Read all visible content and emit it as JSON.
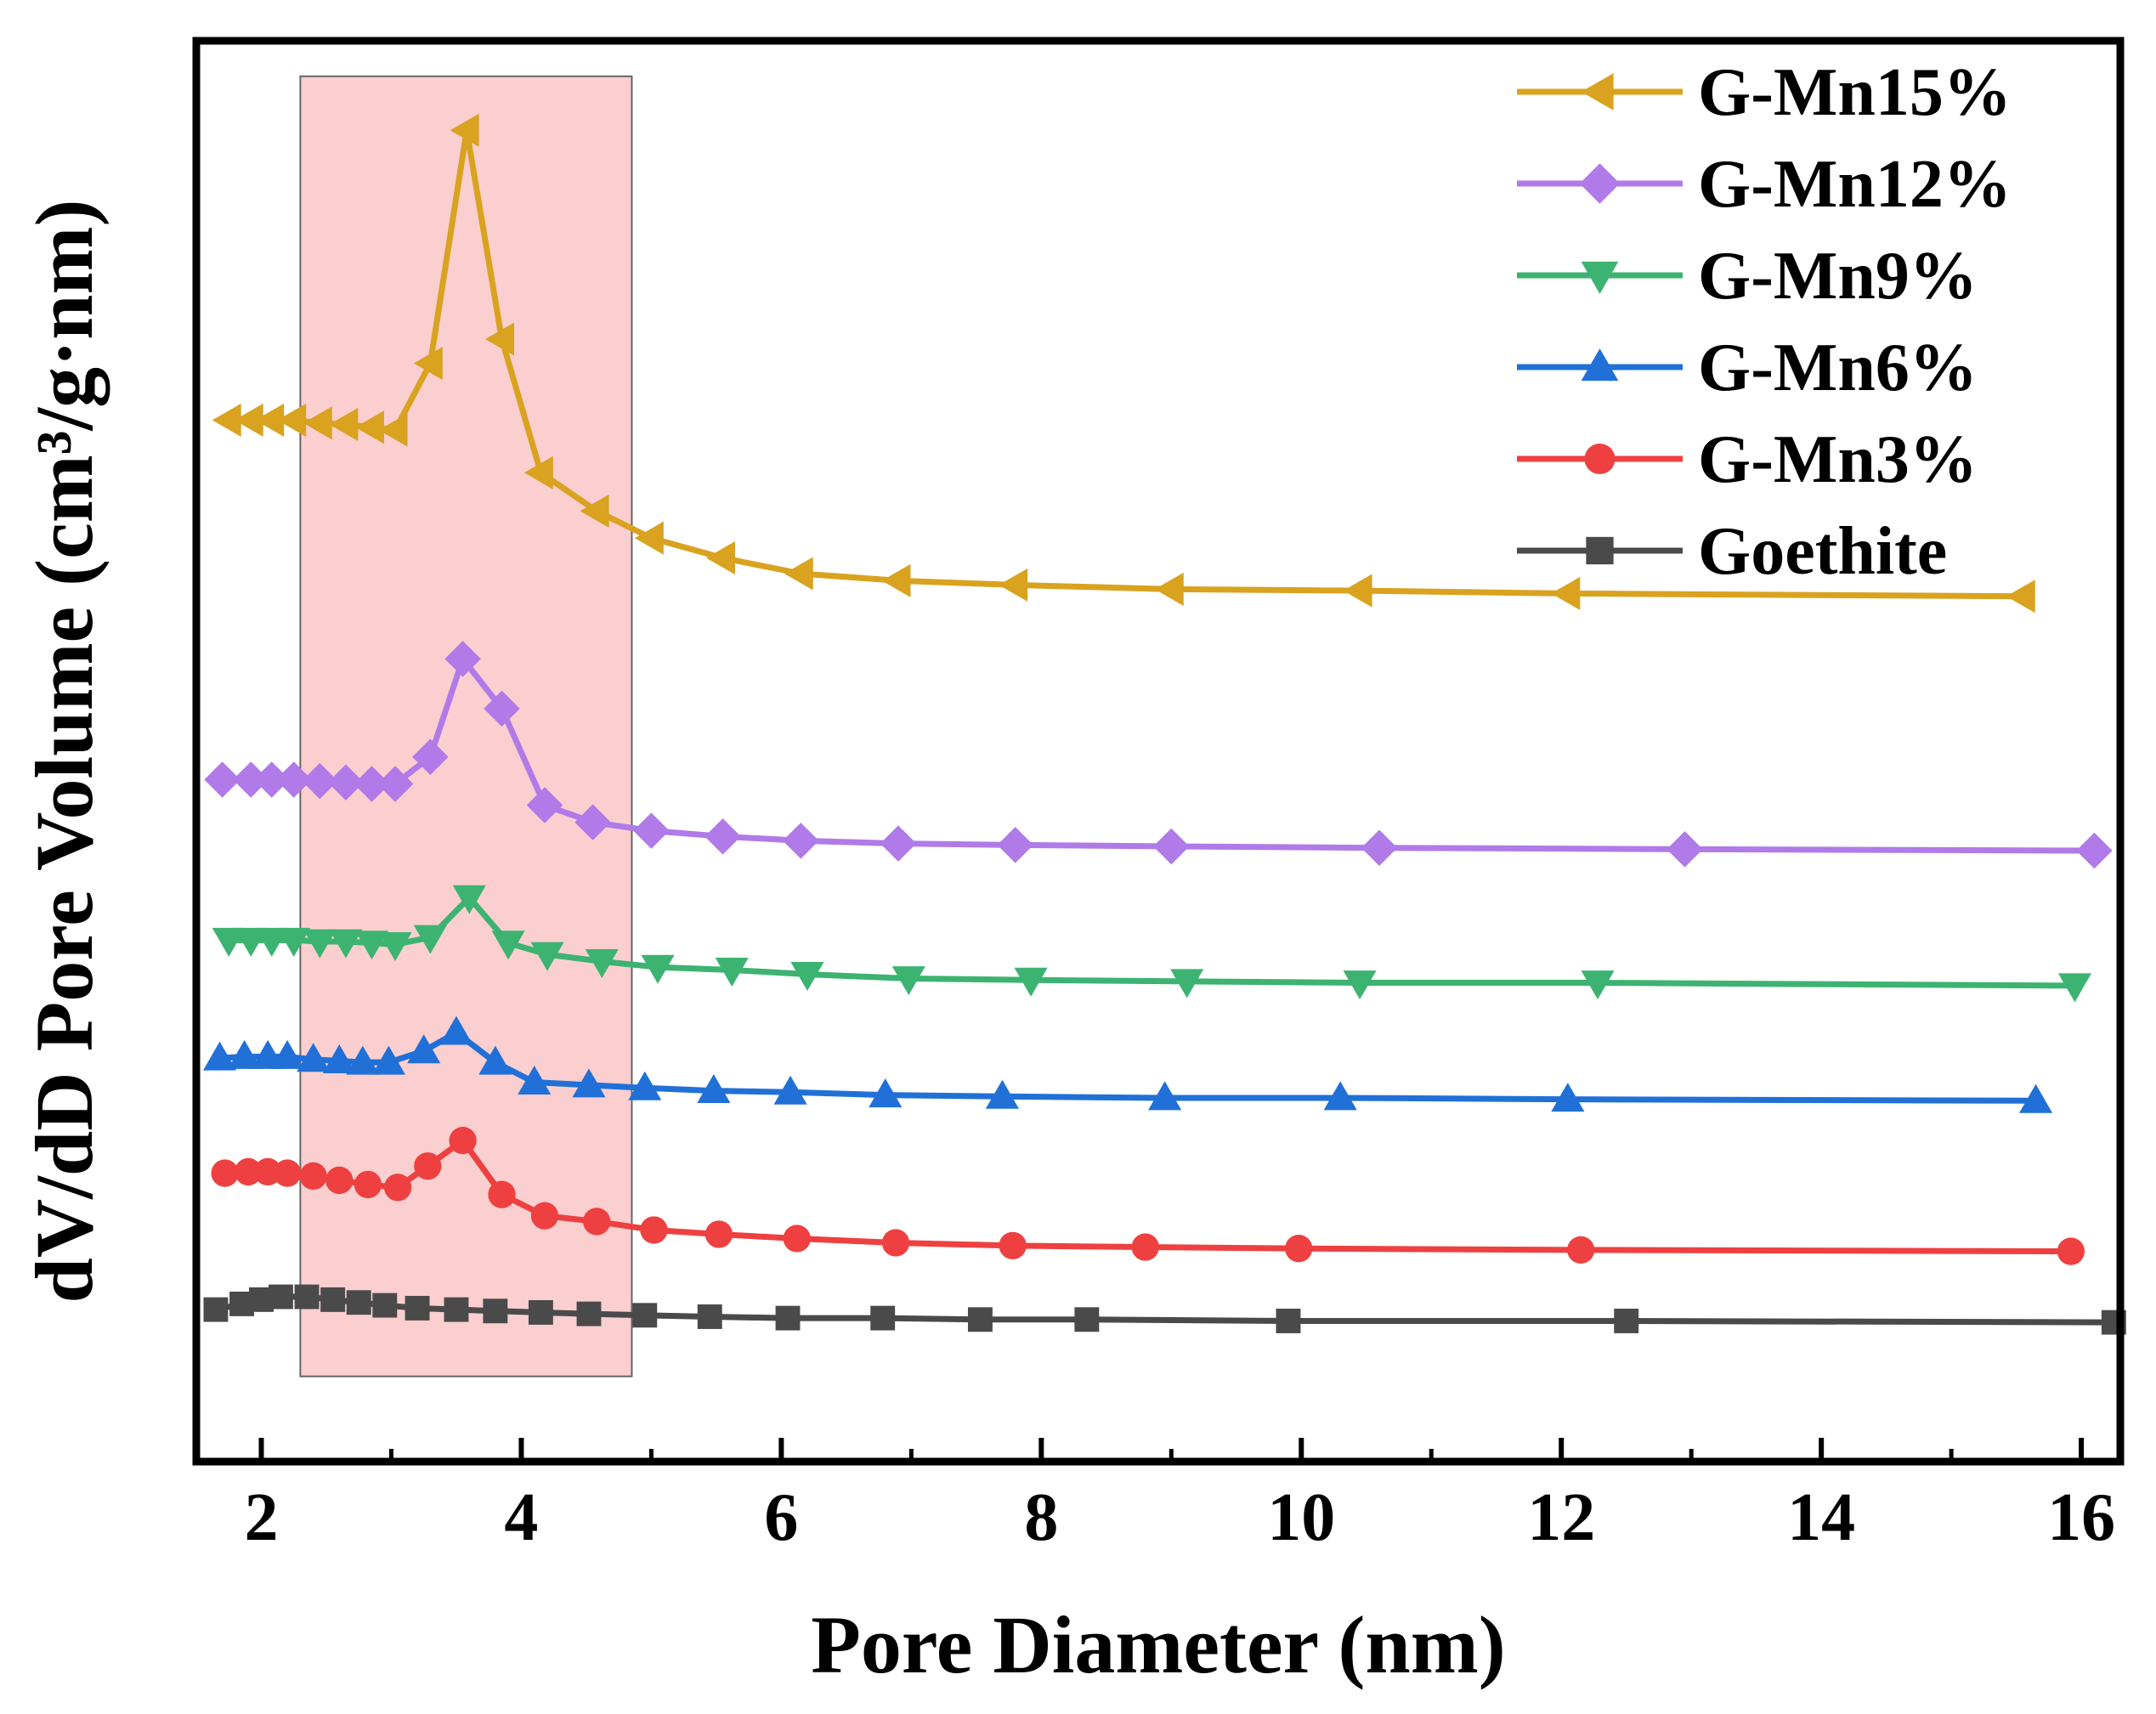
{
  "chart_data": {
    "type": "line",
    "title": "",
    "xlabel": "Pore Diameter (nm)",
    "ylabel": "dV/dD Pore Volume (cm³/g·nm)",
    "xlim": [
      1.5,
      16.3
    ],
    "ylim": [
      0,
      1
    ],
    "x_ticks": [
      2,
      4,
      6,
      8,
      10,
      12,
      14,
      16
    ],
    "y_ticks_shown": false,
    "highlight_region": {
      "x_range": [
        2.3,
        4.85
      ],
      "y_range": [
        0.06,
        0.975
      ],
      "color": "#f8a8a8"
    },
    "legend_position": "top-right",
    "series": [
      {
        "name": "G-Mn15%",
        "color": "#d9a21f",
        "marker": "triangle-left",
        "x": [
          1.75,
          1.92,
          2.08,
          2.25,
          2.45,
          2.65,
          2.85,
          3.03,
          3.3,
          3.58,
          3.85,
          4.15,
          4.58,
          5.0,
          5.55,
          6.15,
          6.9,
          7.8,
          9.0,
          10.45,
          12.05,
          15.55
        ],
        "y": [
          0.733,
          0.733,
          0.733,
          0.733,
          0.731,
          0.73,
          0.728,
          0.726,
          0.773,
          0.937,
          0.79,
          0.696,
          0.669,
          0.65,
          0.636,
          0.625,
          0.62,
          0.617,
          0.614,
          0.613,
          0.611,
          0.609
        ]
      },
      {
        "name": "G-Mn12%",
        "color": "#b07ae8",
        "marker": "diamond",
        "x": [
          1.7,
          1.92,
          2.08,
          2.25,
          2.45,
          2.65,
          2.85,
          3.03,
          3.3,
          3.55,
          3.85,
          4.18,
          4.55,
          5.0,
          5.55,
          6.15,
          6.9,
          7.8,
          9.0,
          10.6,
          12.95,
          16.1
        ],
        "y": [
          0.48,
          0.48,
          0.48,
          0.48,
          0.479,
          0.478,
          0.477,
          0.477,
          0.496,
          0.565,
          0.53,
          0.462,
          0.45,
          0.444,
          0.44,
          0.437,
          0.435,
          0.434,
          0.433,
          0.432,
          0.431,
          0.43
        ]
      },
      {
        "name": "G-Mn9%",
        "color": "#3cb371",
        "marker": "triangle-down",
        "x": [
          1.75,
          1.92,
          2.08,
          2.25,
          2.45,
          2.65,
          2.85,
          3.03,
          3.3,
          3.6,
          3.9,
          4.2,
          4.62,
          5.05,
          5.62,
          6.2,
          6.98,
          7.92,
          9.12,
          10.45,
          12.28,
          15.95
        ],
        "y": [
          0.367,
          0.367,
          0.367,
          0.367,
          0.366,
          0.366,
          0.365,
          0.364,
          0.369,
          0.397,
          0.365,
          0.357,
          0.352,
          0.348,
          0.346,
          0.343,
          0.34,
          0.339,
          0.338,
          0.337,
          0.337,
          0.335
        ]
      },
      {
        "name": "G-Mn6%",
        "color": "#2070d8",
        "marker": "triangle-up",
        "x": [
          1.68,
          1.87,
          2.05,
          2.2,
          2.4,
          2.6,
          2.78,
          2.98,
          3.25,
          3.5,
          3.8,
          4.1,
          4.52,
          4.95,
          5.48,
          6.07,
          6.8,
          7.7,
          8.95,
          10.3,
          12.05,
          15.65
        ],
        "y": [
          0.284,
          0.285,
          0.285,
          0.285,
          0.283,
          0.282,
          0.281,
          0.281,
          0.289,
          0.302,
          0.281,
          0.267,
          0.265,
          0.263,
          0.261,
          0.26,
          0.258,
          0.257,
          0.256,
          0.256,
          0.255,
          0.254
        ]
      },
      {
        "name": "G-Mn3%",
        "color": "#ee4040",
        "marker": "circle",
        "x": [
          1.72,
          1.9,
          2.05,
          2.2,
          2.4,
          2.6,
          2.82,
          3.05,
          3.28,
          3.55,
          3.85,
          4.18,
          4.58,
          5.02,
          5.52,
          6.12,
          6.88,
          7.78,
          8.8,
          9.98,
          12.15,
          15.92
        ],
        "y": [
          0.203,
          0.204,
          0.204,
          0.203,
          0.201,
          0.198,
          0.195,
          0.193,
          0.208,
          0.226,
          0.188,
          0.173,
          0.169,
          0.163,
          0.16,
          0.157,
          0.154,
          0.152,
          0.151,
          0.15,
          0.149,
          0.148
        ]
      },
      {
        "name": "Goethite",
        "color": "#4a4a4a",
        "marker": "square",
        "x": [
          1.65,
          1.85,
          2.0,
          2.15,
          2.35,
          2.55,
          2.75,
          2.95,
          3.2,
          3.5,
          3.8,
          4.15,
          4.52,
          4.95,
          5.45,
          6.05,
          6.78,
          7.53,
          8.35,
          9.9,
          12.5,
          16.25
        ],
        "y": [
          0.107,
          0.111,
          0.114,
          0.116,
          0.116,
          0.114,
          0.112,
          0.11,
          0.108,
          0.107,
          0.106,
          0.105,
          0.104,
          0.103,
          0.102,
          0.101,
          0.101,
          0.1,
          0.1,
          0.099,
          0.099,
          0.098
        ]
      }
    ]
  }
}
